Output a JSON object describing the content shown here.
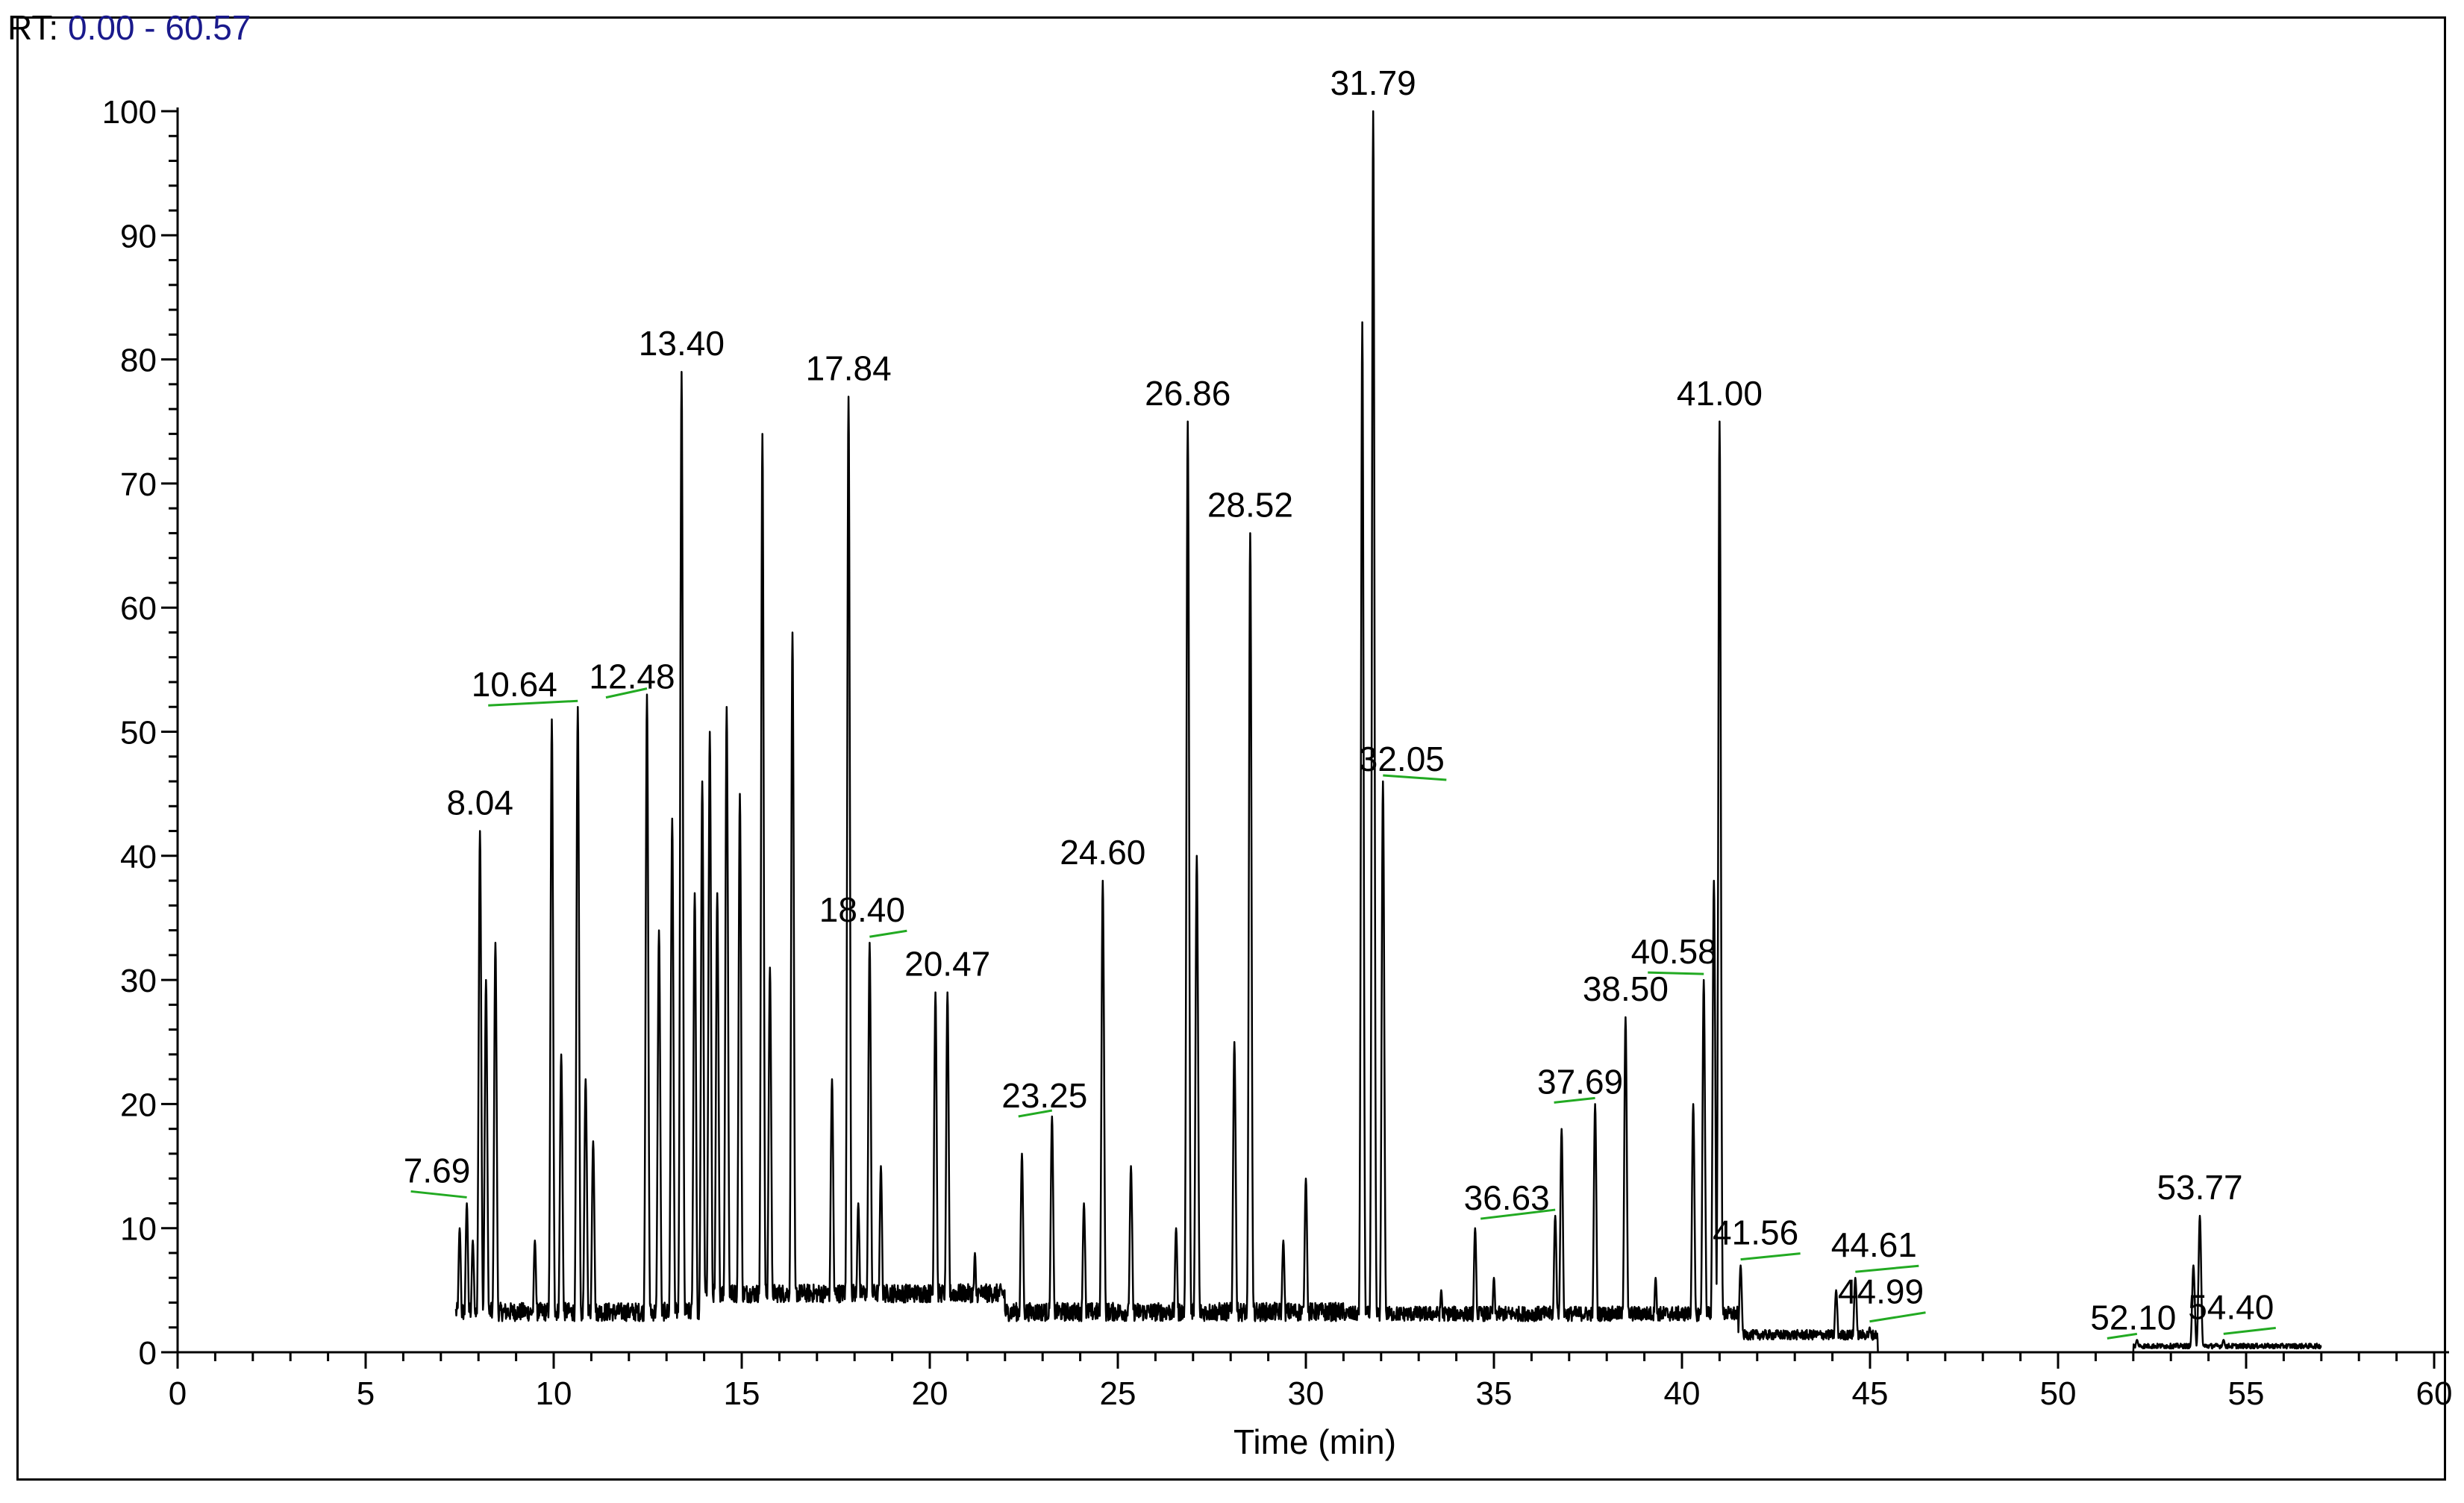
{
  "header": {
    "rt_prefix": "RT:",
    "rt_range": "0.00 - 60.57"
  },
  "chart_data": {
    "type": "line",
    "title": "",
    "xlabel": "Time (min)",
    "ylabel": "",
    "xlim": [
      0,
      60
    ],
    "ylim": [
      0,
      100
    ],
    "x_ticks": [
      0,
      5,
      10,
      15,
      20,
      25,
      30,
      35,
      40,
      45,
      50,
      55,
      60
    ],
    "x_tick_labels": [
      "0",
      "5",
      "10",
      "15",
      "20",
      "25",
      "30",
      "35",
      "40",
      "45",
      "50",
      "55",
      "60"
    ],
    "y_ticks": [
      0,
      10,
      20,
      30,
      40,
      50,
      60,
      70,
      80,
      90,
      100
    ],
    "y_tick_labels": [
      "0",
      "10",
      "20",
      "30",
      "40",
      "50",
      "60",
      "70",
      "80",
      "90",
      "100"
    ],
    "grid": false,
    "legend": "none",
    "line_color": "#000000",
    "leader_color": "#22aa22",
    "peaks": [
      {
        "rt": 7.5,
        "h": 10
      },
      {
        "rt": 7.69,
        "h": 12
      },
      {
        "rt": 7.85,
        "h": 9
      },
      {
        "rt": 8.04,
        "h": 42
      },
      {
        "rt": 8.2,
        "h": 30
      },
      {
        "rt": 8.45,
        "h": 33
      },
      {
        "rt": 9.5,
        "h": 9
      },
      {
        "rt": 9.95,
        "h": 51
      },
      {
        "rt": 10.2,
        "h": 24
      },
      {
        "rt": 10.64,
        "h": 52
      },
      {
        "rt": 10.85,
        "h": 22
      },
      {
        "rt": 11.05,
        "h": 17
      },
      {
        "rt": 12.48,
        "h": 53
      },
      {
        "rt": 12.8,
        "h": 34
      },
      {
        "rt": 13.15,
        "h": 43
      },
      {
        "rt": 13.4,
        "h": 79
      },
      {
        "rt": 13.75,
        "h": 37
      },
      {
        "rt": 13.95,
        "h": 46
      },
      {
        "rt": 14.15,
        "h": 50
      },
      {
        "rt": 14.35,
        "h": 37
      },
      {
        "rt": 14.6,
        "h": 52
      },
      {
        "rt": 14.95,
        "h": 45
      },
      {
        "rt": 15.55,
        "h": 74
      },
      {
        "rt": 15.75,
        "h": 31
      },
      {
        "rt": 16.35,
        "h": 58
      },
      {
        "rt": 17.4,
        "h": 22
      },
      {
        "rt": 17.84,
        "h": 77
      },
      {
        "rt": 18.1,
        "h": 12
      },
      {
        "rt": 18.4,
        "h": 33
      },
      {
        "rt": 18.7,
        "h": 15
      },
      {
        "rt": 20.15,
        "h": 29
      },
      {
        "rt": 20.47,
        "h": 29
      },
      {
        "rt": 21.2,
        "h": 8
      },
      {
        "rt": 22.45,
        "h": 16
      },
      {
        "rt": 23.25,
        "h": 19
      },
      {
        "rt": 24.1,
        "h": 12
      },
      {
        "rt": 24.6,
        "h": 38
      },
      {
        "rt": 25.35,
        "h": 15
      },
      {
        "rt": 26.55,
        "h": 10
      },
      {
        "rt": 26.86,
        "h": 75
      },
      {
        "rt": 27.1,
        "h": 40
      },
      {
        "rt": 28.1,
        "h": 25
      },
      {
        "rt": 28.52,
        "h": 66
      },
      {
        "rt": 29.4,
        "h": 9
      },
      {
        "rt": 30.0,
        "h": 14
      },
      {
        "rt": 31.5,
        "h": 83
      },
      {
        "rt": 31.79,
        "h": 100
      },
      {
        "rt": 32.05,
        "h": 46
      },
      {
        "rt": 33.6,
        "h": 5
      },
      {
        "rt": 34.5,
        "h": 10
      },
      {
        "rt": 35.0,
        "h": 6
      },
      {
        "rt": 36.63,
        "h": 11
      },
      {
        "rt": 36.8,
        "h": 18
      },
      {
        "rt": 37.69,
        "h": 20
      },
      {
        "rt": 38.5,
        "h": 27
      },
      {
        "rt": 39.3,
        "h": 6
      },
      {
        "rt": 40.3,
        "h": 20
      },
      {
        "rt": 40.58,
        "h": 30
      },
      {
        "rt": 40.85,
        "h": 38
      },
      {
        "rt": 41.0,
        "h": 75
      },
      {
        "rt": 41.56,
        "h": 7
      },
      {
        "rt": 44.1,
        "h": 5
      },
      {
        "rt": 44.61,
        "h": 6
      },
      {
        "rt": 44.99,
        "h": 2
      },
      {
        "rt": 52.1,
        "h": 1
      },
      {
        "rt": 53.6,
        "h": 7
      },
      {
        "rt": 53.77,
        "h": 11
      },
      {
        "rt": 54.4,
        "h": 1
      }
    ],
    "annotations": [
      {
        "text": "7.69",
        "x": 7.69,
        "y": 12
      },
      {
        "text": "8.04",
        "x": 8.04,
        "y": 42
      },
      {
        "text": "10.64",
        "x": 10.64,
        "y": 52
      },
      {
        "text": "12.48",
        "x": 12.48,
        "y": 53
      },
      {
        "text": "13.40",
        "x": 13.4,
        "y": 79
      },
      {
        "text": "17.84",
        "x": 17.84,
        "y": 77
      },
      {
        "text": "18.40",
        "x": 18.4,
        "y": 33
      },
      {
        "text": "20.47",
        "x": 20.47,
        "y": 29
      },
      {
        "text": "23.25",
        "x": 23.25,
        "y": 19
      },
      {
        "text": "24.60",
        "x": 24.6,
        "y": 38
      },
      {
        "text": "26.86",
        "x": 26.86,
        "y": 75
      },
      {
        "text": "28.52",
        "x": 28.52,
        "y": 66
      },
      {
        "text": "31.79",
        "x": 31.79,
        "y": 100
      },
      {
        "text": "32.05",
        "x": 32.05,
        "y": 46
      },
      {
        "text": "36.63",
        "x": 36.63,
        "y": 11
      },
      {
        "text": "37.69",
        "x": 37.69,
        "y": 20
      },
      {
        "text": "38.50",
        "x": 38.5,
        "y": 27
      },
      {
        "text": "40.58",
        "x": 40.58,
        "y": 30
      },
      {
        "text": "41.00",
        "x": 41.0,
        "y": 75
      },
      {
        "text": "41.56",
        "x": 41.56,
        "y": 7
      },
      {
        "text": "44.61",
        "x": 44.61,
        "y": 6
      },
      {
        "text": "44.99",
        "x": 44.99,
        "y": 2
      },
      {
        "text": "52.10",
        "x": 52.1,
        "y": 1
      },
      {
        "text": "53.77",
        "x": 53.77,
        "y": 11
      },
      {
        "text": "54.40",
        "x": 54.4,
        "y": 1
      }
    ]
  }
}
